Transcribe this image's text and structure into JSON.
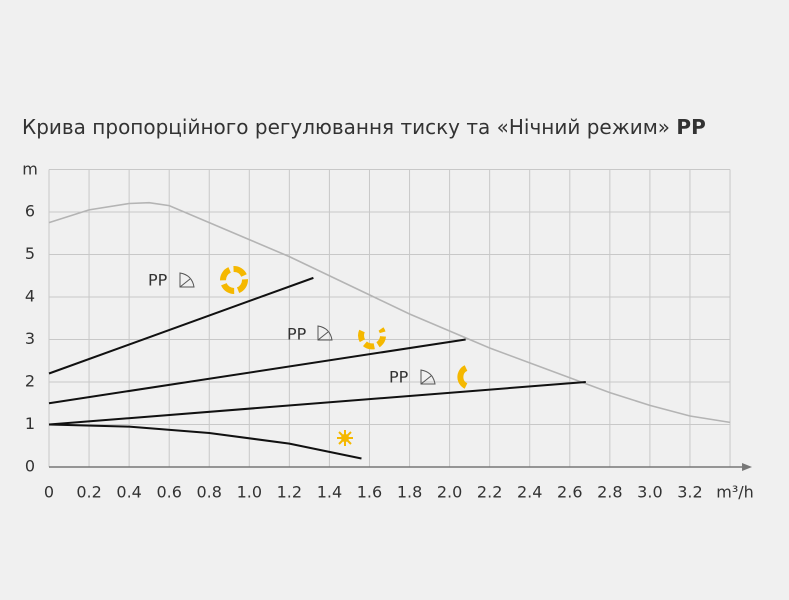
{
  "chart_data": {
    "type": "line",
    "title": "Крива пропорційного регулювання тиску та «Нічний режим»",
    "title_emphasis": "PP",
    "y_label": "m",
    "x_label": "m³/h",
    "xlim": [
      0,
      3.4
    ],
    "ylim": [
      0,
      7
    ],
    "xticks": [
      0,
      0.2,
      0.4,
      0.6,
      0.8,
      {
        "value": 1,
        "label": "1.0"
      },
      1.2,
      1.4,
      1.6,
      1.8,
      {
        "value": 2,
        "label": "2.0"
      },
      2.2,
      2.4,
      2.6,
      2.8,
      {
        "value": 3,
        "label": "3.0"
      },
      3.2
    ],
    "yticks": [
      0,
      1,
      2,
      3,
      4,
      5,
      6
    ],
    "grid": true,
    "series": [
      {
        "color": "#b4b4b4",
        "x": [
          0,
          0.2,
          0.4,
          0.5,
          0.6,
          0.8,
          1.0,
          1.2,
          1.4,
          1.6,
          1.8,
          2.0,
          2.2,
          2.4,
          2.6,
          2.8,
          3.0,
          3.2,
          3.4
        ],
        "values": [
          5.75,
          6.05,
          6.2,
          6.22,
          6.15,
          5.75,
          5.35,
          4.95,
          4.5,
          4.05,
          3.6,
          3.2,
          2.8,
          2.45,
          2.1,
          1.75,
          1.45,
          1.2,
          1.05
        ]
      },
      {
        "color": "#111111",
        "x": [
          0,
          1.32
        ],
        "values": [
          2.2,
          4.45
        ]
      },
      {
        "color": "#111111",
        "x": [
          0,
          2.08
        ],
        "values": [
          1.5,
          3.0
        ]
      },
      {
        "color": "#111111",
        "x": [
          0,
          2.68
        ],
        "values": [
          1.0,
          2.0
        ]
      },
      {
        "color": "#111111",
        "x": [
          0,
          0.4,
          0.8,
          1.2,
          1.56
        ],
        "values": [
          1.0,
          0.95,
          0.8,
          0.55,
          0.2
        ]
      }
    ],
    "annotations": [
      "PP",
      "PP",
      "PP"
    ]
  }
}
